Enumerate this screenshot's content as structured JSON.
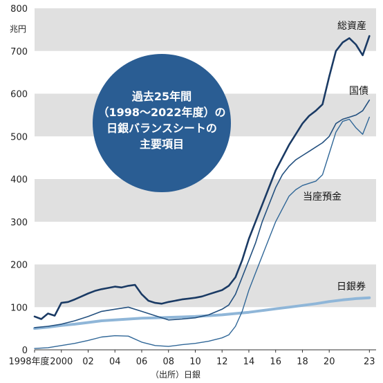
{
  "colors": {
    "band": "#e0e0e0",
    "total_assets": "#1a3a64",
    "jgb": "#23507f",
    "current_account": "#2f6697",
    "banknotes": "#8fb6d8",
    "circle": "#2a5d93"
  },
  "chart_data": {
    "type": "line",
    "title_lines": [
      "過去25年間",
      "（1998～2022年度）の",
      "日銀バランスシートの",
      "主要項目"
    ],
    "ylabel": "兆円",
    "ylim": [
      0,
      800
    ],
    "yticks": [
      "0",
      "100",
      "200",
      "300",
      "400",
      "500",
      "600",
      "700",
      "800"
    ],
    "xlim": [
      1998,
      2023.5
    ],
    "xticks": [
      {
        "x": 1998,
        "label": "1998年度"
      },
      {
        "x": 2000,
        "label": "2000"
      },
      {
        "x": 2002,
        "label": "02"
      },
      {
        "x": 2004,
        "label": "04"
      },
      {
        "x": 2006,
        "label": "06"
      },
      {
        "x": 2008,
        "label": "08"
      },
      {
        "x": 2010,
        "label": "10"
      },
      {
        "x": 2012,
        "label": "12"
      },
      {
        "x": 2014,
        "label": "14"
      },
      {
        "x": 2016,
        "label": "16"
      },
      {
        "x": 2018,
        "label": "18"
      },
      {
        "x": 2020,
        "label": "20"
      },
      {
        "x": 2023,
        "label": "23"
      }
    ],
    "grid": "alternating horizontal bands",
    "source": "（出所）日銀",
    "series": [
      {
        "name": "総資産",
        "key": "total_assets",
        "points": [
          [
            1998,
            78
          ],
          [
            1998.5,
            72
          ],
          [
            1999,
            85
          ],
          [
            1999.5,
            80
          ],
          [
            2000,
            110
          ],
          [
            2000.5,
            112
          ],
          [
            2001,
            118
          ],
          [
            2001.5,
            125
          ],
          [
            2002,
            132
          ],
          [
            2002.5,
            138
          ],
          [
            2003,
            142
          ],
          [
            2003.5,
            145
          ],
          [
            2004,
            148
          ],
          [
            2004.5,
            146
          ],
          [
            2005,
            150
          ],
          [
            2005.5,
            152
          ],
          [
            2006,
            130
          ],
          [
            2006.5,
            115
          ],
          [
            2007,
            110
          ],
          [
            2007.5,
            108
          ],
          [
            2008,
            112
          ],
          [
            2008.5,
            115
          ],
          [
            2009,
            118
          ],
          [
            2009.5,
            120
          ],
          [
            2010,
            122
          ],
          [
            2010.5,
            125
          ],
          [
            2011,
            130
          ],
          [
            2011.5,
            135
          ],
          [
            2012,
            140
          ],
          [
            2012.5,
            150
          ],
          [
            2013,
            170
          ],
          [
            2013.5,
            210
          ],
          [
            2014,
            260
          ],
          [
            2014.5,
            300
          ],
          [
            2015,
            340
          ],
          [
            2015.5,
            380
          ],
          [
            2016,
            420
          ],
          [
            2016.5,
            450
          ],
          [
            2017,
            480
          ],
          [
            2017.5,
            505
          ],
          [
            2018,
            530
          ],
          [
            2018.5,
            548
          ],
          [
            2019,
            560
          ],
          [
            2019.5,
            575
          ],
          [
            2020,
            640
          ],
          [
            2020.5,
            700
          ],
          [
            2021,
            720
          ],
          [
            2021.5,
            730
          ],
          [
            2022,
            715
          ],
          [
            2022.5,
            690
          ],
          [
            2023,
            735
          ]
        ]
      },
      {
        "name": "国債",
        "key": "jgb",
        "points": [
          [
            1998,
            52
          ],
          [
            1999,
            55
          ],
          [
            2000,
            60
          ],
          [
            2001,
            68
          ],
          [
            2002,
            78
          ],
          [
            2003,
            90
          ],
          [
            2004,
            95
          ],
          [
            2005,
            100
          ],
          [
            2006,
            90
          ],
          [
            2007,
            80
          ],
          [
            2008,
            70
          ],
          [
            2009,
            72
          ],
          [
            2010,
            75
          ],
          [
            2011,
            82
          ],
          [
            2012,
            95
          ],
          [
            2012.5,
            105
          ],
          [
            2013,
            130
          ],
          [
            2013.5,
            170
          ],
          [
            2014,
            210
          ],
          [
            2014.5,
            250
          ],
          [
            2015,
            300
          ],
          [
            2015.5,
            340
          ],
          [
            2016,
            380
          ],
          [
            2016.5,
            410
          ],
          [
            2017,
            430
          ],
          [
            2017.5,
            445
          ],
          [
            2018,
            455
          ],
          [
            2018.5,
            465
          ],
          [
            2019,
            475
          ],
          [
            2019.5,
            485
          ],
          [
            2020,
            500
          ],
          [
            2020.5,
            530
          ],
          [
            2021,
            540
          ],
          [
            2021.5,
            545
          ],
          [
            2022,
            550
          ],
          [
            2022.5,
            560
          ],
          [
            2023,
            585
          ]
        ]
      },
      {
        "name": "当座預金",
        "key": "current_account",
        "points": [
          [
            1998,
            3
          ],
          [
            1999,
            5
          ],
          [
            2000,
            10
          ],
          [
            2001,
            15
          ],
          [
            2002,
            22
          ],
          [
            2003,
            30
          ],
          [
            2004,
            33
          ],
          [
            2005,
            32
          ],
          [
            2006,
            18
          ],
          [
            2007,
            10
          ],
          [
            2008,
            8
          ],
          [
            2009,
            12
          ],
          [
            2010,
            15
          ],
          [
            2011,
            20
          ],
          [
            2012,
            28
          ],
          [
            2012.5,
            35
          ],
          [
            2013,
            55
          ],
          [
            2013.5,
            90
          ],
          [
            2014,
            140
          ],
          [
            2014.5,
            180
          ],
          [
            2015,
            220
          ],
          [
            2015.5,
            260
          ],
          [
            2016,
            300
          ],
          [
            2016.5,
            330
          ],
          [
            2017,
            360
          ],
          [
            2017.5,
            375
          ],
          [
            2018,
            385
          ],
          [
            2018.5,
            390
          ],
          [
            2019,
            395
          ],
          [
            2019.5,
            410
          ],
          [
            2020,
            460
          ],
          [
            2020.5,
            510
          ],
          [
            2021,
            535
          ],
          [
            2021.5,
            540
          ],
          [
            2022,
            520
          ],
          [
            2022.5,
            505
          ],
          [
            2023,
            545
          ]
        ]
      },
      {
        "name": "日銀券",
        "key": "banknotes",
        "points": [
          [
            1998,
            50
          ],
          [
            1999,
            53
          ],
          [
            2000,
            57
          ],
          [
            2001,
            60
          ],
          [
            2002,
            64
          ],
          [
            2003,
            68
          ],
          [
            2004,
            70
          ],
          [
            2005,
            72
          ],
          [
            2006,
            74
          ],
          [
            2007,
            75
          ],
          [
            2008,
            76
          ],
          [
            2009,
            77
          ],
          [
            2010,
            78
          ],
          [
            2011,
            80
          ],
          [
            2012,
            82
          ],
          [
            2013,
            85
          ],
          [
            2014,
            88
          ],
          [
            2015,
            92
          ],
          [
            2016,
            96
          ],
          [
            2017,
            100
          ],
          [
            2018,
            104
          ],
          [
            2019,
            108
          ],
          [
            2020,
            113
          ],
          [
            2021,
            117
          ],
          [
            2022,
            120
          ],
          [
            2023,
            122
          ]
        ]
      }
    ]
  }
}
